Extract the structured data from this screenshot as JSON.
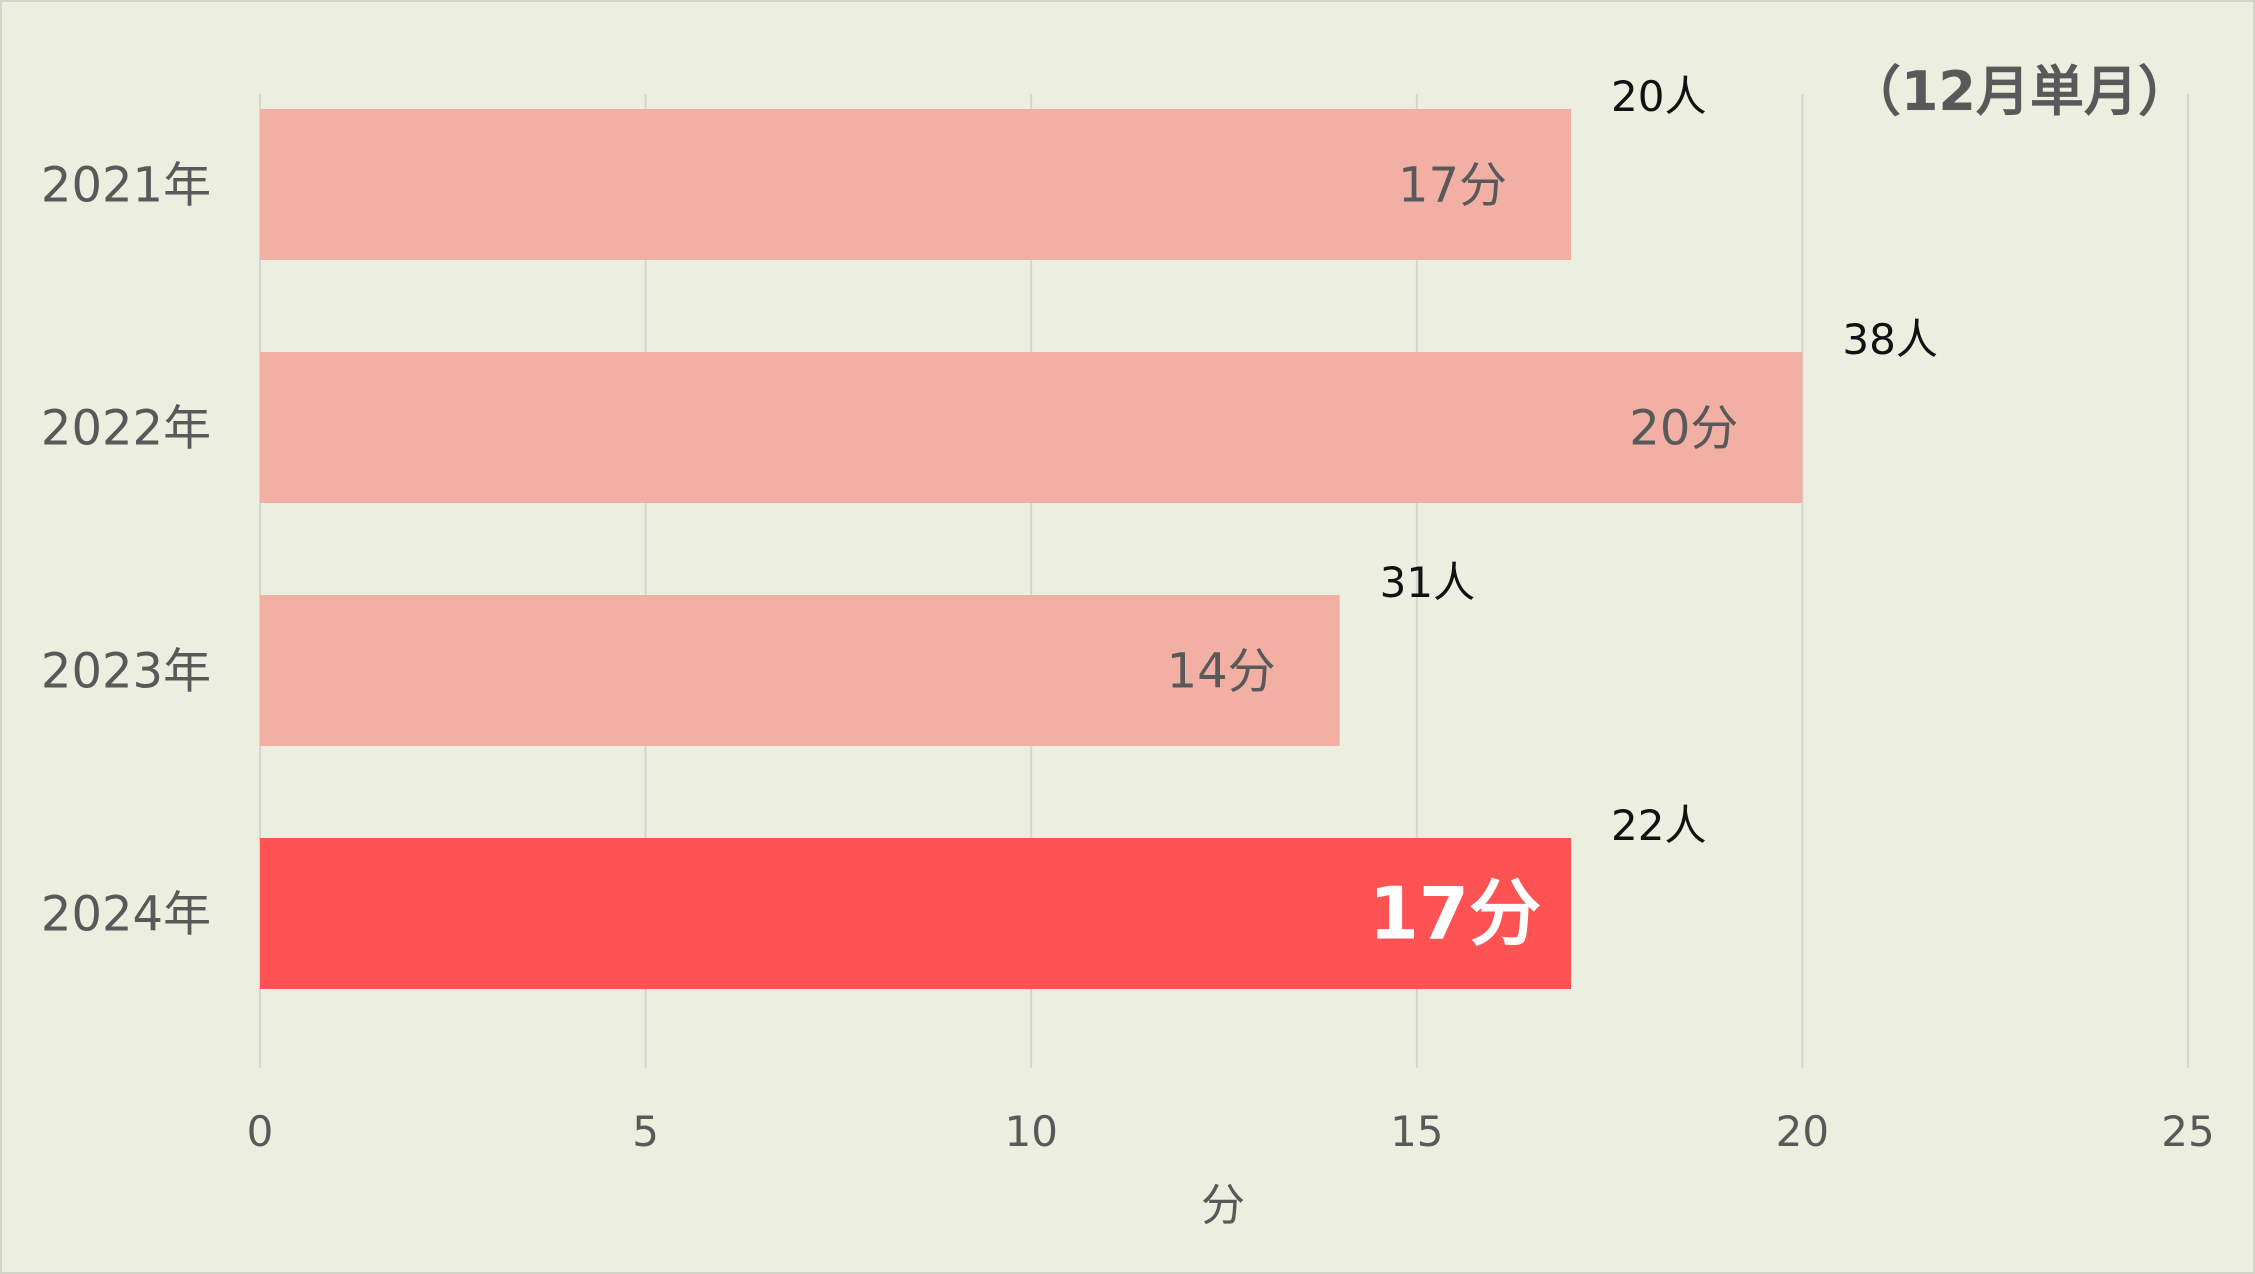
{
  "chart_data": {
    "type": "bar",
    "orientation": "horizontal",
    "categories": [
      "2021年",
      "2022年",
      "2023年",
      "2024年"
    ],
    "values": [
      17,
      20,
      14,
      17
    ],
    "value_labels": [
      "17分",
      "20分",
      "14分",
      "17分"
    ],
    "counts": [
      "20人",
      "38人",
      "31人",
      "22人"
    ],
    "highlight_index": 3,
    "xlabel": "分",
    "xlim": [
      0,
      25
    ],
    "xticks": [
      0,
      5,
      10,
      15,
      20,
      25
    ],
    "note": "（12月単月）",
    "grid": true,
    "colors": {
      "bar": "#f2b0a5",
      "highlight": "#ff5252",
      "background": "#ecefdf"
    }
  }
}
